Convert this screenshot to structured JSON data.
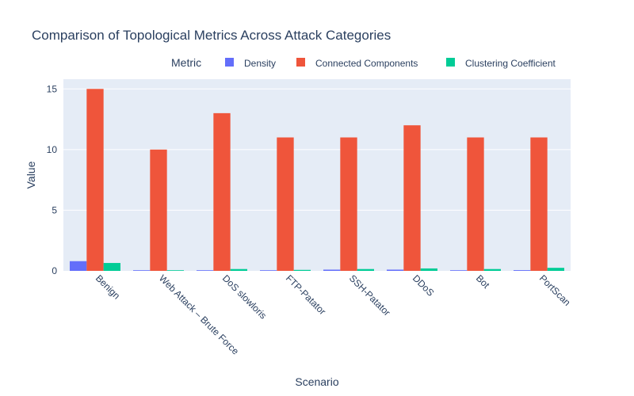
{
  "chart_data": {
    "type": "bar",
    "title": "Comparison of Topological Metrics Across Attack Categories",
    "xlabel": "Scenario",
    "ylabel": "Value",
    "legend_title": "Metric",
    "legend_position": "top-right",
    "grid": true,
    "ylim": [
      0,
      15.8
    ],
    "yticks": [
      0,
      5,
      10,
      15
    ],
    "categories": [
      "Benign",
      "Web Attack – Brute Force",
      "DoS slowloris",
      "FTP-Patator",
      "SSH-Patator",
      "DDoS",
      "Bot",
      "PortScan"
    ],
    "series": [
      {
        "name": "Density",
        "color": "#636efa",
        "values": [
          0.8,
          0.02,
          0.02,
          0.03,
          0.1,
          0.1,
          0.05,
          0.06
        ]
      },
      {
        "name": "Connected Components",
        "color": "#ef553b",
        "values": [
          15,
          10,
          13,
          11,
          11,
          12,
          11,
          11
        ]
      },
      {
        "name": "Clustering Coefficient",
        "color": "#00cc96",
        "values": [
          0.65,
          0.05,
          0.15,
          0.08,
          0.15,
          0.2,
          0.15,
          0.25
        ]
      }
    ]
  }
}
